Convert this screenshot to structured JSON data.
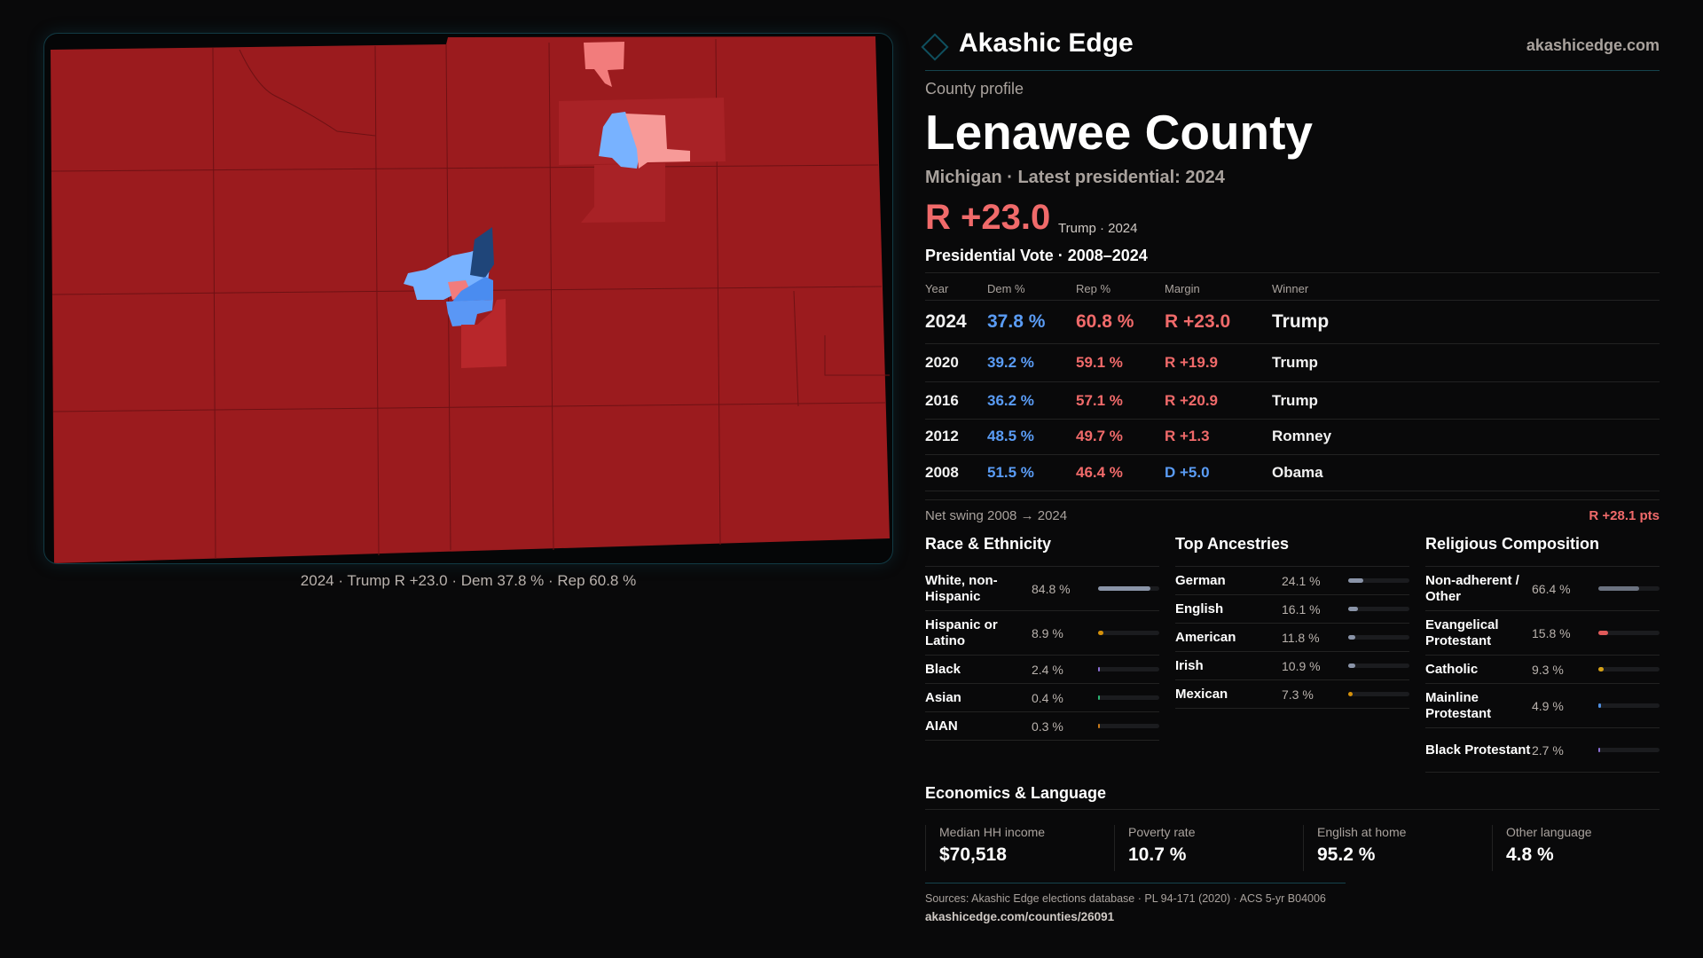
{
  "header": {
    "brand": "Akashic Edge",
    "site": "akashicedge.com",
    "logo_icon": "diamond-outline-icon"
  },
  "profile": {
    "kicker": "County profile",
    "title": "Lenawee County",
    "subtitle": "Michigan · Latest presidential: 2024",
    "margin": "R +23.0",
    "margin_note": "Trump · 2024"
  },
  "votes": {
    "title": "Presidential Vote · 2008–2024",
    "columns": [
      "Year",
      "Dem %",
      "Rep %",
      "Margin",
      "Winner"
    ],
    "rows": [
      {
        "year": "2024",
        "dem": "37.8 %",
        "rep": "60.8 %",
        "margin": "R +23.0",
        "winner": "Trump",
        "party": "R"
      },
      {
        "year": "2020",
        "dem": "39.2 %",
        "rep": "59.1 %",
        "margin": "R +19.9",
        "winner": "Trump",
        "party": "R"
      },
      {
        "year": "2016",
        "dem": "36.2 %",
        "rep": "57.1 %",
        "margin": "R +20.9",
        "winner": "Trump",
        "party": "R"
      },
      {
        "year": "2012",
        "dem": "48.5 %",
        "rep": "49.7 %",
        "margin": "R +1.3",
        "winner": "Romney",
        "party": "R"
      },
      {
        "year": "2008",
        "dem": "51.5 %",
        "rep": "46.4 %",
        "margin": "D +5.0",
        "winner": "Obama",
        "party": "D"
      }
    ],
    "swing_label": "Net swing 2008 → 2024",
    "swing_value": "R +28.1 pts"
  },
  "race": {
    "title": "Race & Ethnicity",
    "items": [
      {
        "label": "White, non-Hispanic",
        "value": "84.8 %",
        "pct": 84.8,
        "color": "#8a94a8"
      },
      {
        "label": "Hispanic or Latino",
        "value": "8.9 %",
        "pct": 8.9,
        "color": "#d4900a"
      },
      {
        "label": "Black",
        "value": "2.4 %",
        "pct": 2.4,
        "color": "#8b6fd6"
      },
      {
        "label": "Asian",
        "value": "0.4 %",
        "pct": 0.4,
        "color": "#2bb673"
      },
      {
        "label": "AIAN",
        "value": "0.3 %",
        "pct": 0.3,
        "color": "#c87a1a"
      }
    ]
  },
  "ancestry": {
    "title": "Top Ancestries",
    "items": [
      {
        "label": "German",
        "value": "24.1 %",
        "pct": 24.1,
        "color": "#8a94a8"
      },
      {
        "label": "English",
        "value": "16.1 %",
        "pct": 16.1,
        "color": "#8a94a8"
      },
      {
        "label": "American",
        "value": "11.8 %",
        "pct": 11.8,
        "color": "#8a94a8"
      },
      {
        "label": "Irish",
        "value": "10.9 %",
        "pct": 10.9,
        "color": "#8a94a8"
      },
      {
        "label": "Mexican",
        "value": "7.3 %",
        "pct": 7.3,
        "color": "#d4900a"
      }
    ]
  },
  "religion": {
    "title": "Religious Composition",
    "items": [
      {
        "label": "Non-adherent / Other",
        "value": "66.4 %",
        "pct": 66.4,
        "color": "#6b7280"
      },
      {
        "label": "Evangelical Protestant",
        "value": "15.8 %",
        "pct": 15.8,
        "color": "#e05a5a"
      },
      {
        "label": "Catholic",
        "value": "9.3 %",
        "pct": 9.3,
        "color": "#d4a017"
      },
      {
        "label": "Mainline Protestant",
        "value": "4.9 %",
        "pct": 4.9,
        "color": "#4f8fe0"
      },
      {
        "label": "Black Protestant",
        "value": "2.7 %",
        "pct": 2.7,
        "color": "#8b6fd6"
      }
    ]
  },
  "economics": {
    "title": "Economics & Language",
    "stats": [
      {
        "label": "Median HH income",
        "value": "$70,518"
      },
      {
        "label": "Poverty rate",
        "value": "10.7 %"
      },
      {
        "label": "English at home",
        "value": "95.2 %"
      },
      {
        "label": "Other language",
        "value": "4.8 %"
      }
    ]
  },
  "footer": {
    "sources": "Sources: Akashic Edge elections database · PL 94-171 (2020) · ACS 5-yr B04006",
    "url": "akashicedge.com/counties/26091"
  },
  "map": {
    "caption": "2024 · Trump R +23.0 · Dem 37.8 % · Rep 60.8 %",
    "colors": {
      "strong_rep": "#9b1b1e",
      "lean_rep": "#b8272b",
      "light_rep": "#f27c7c",
      "pale_rep": "#f79a98",
      "light_dem": "#78b2ff",
      "mid_dem": "#4a8cf0",
      "dark_dem": "#1f4579"
    }
  }
}
